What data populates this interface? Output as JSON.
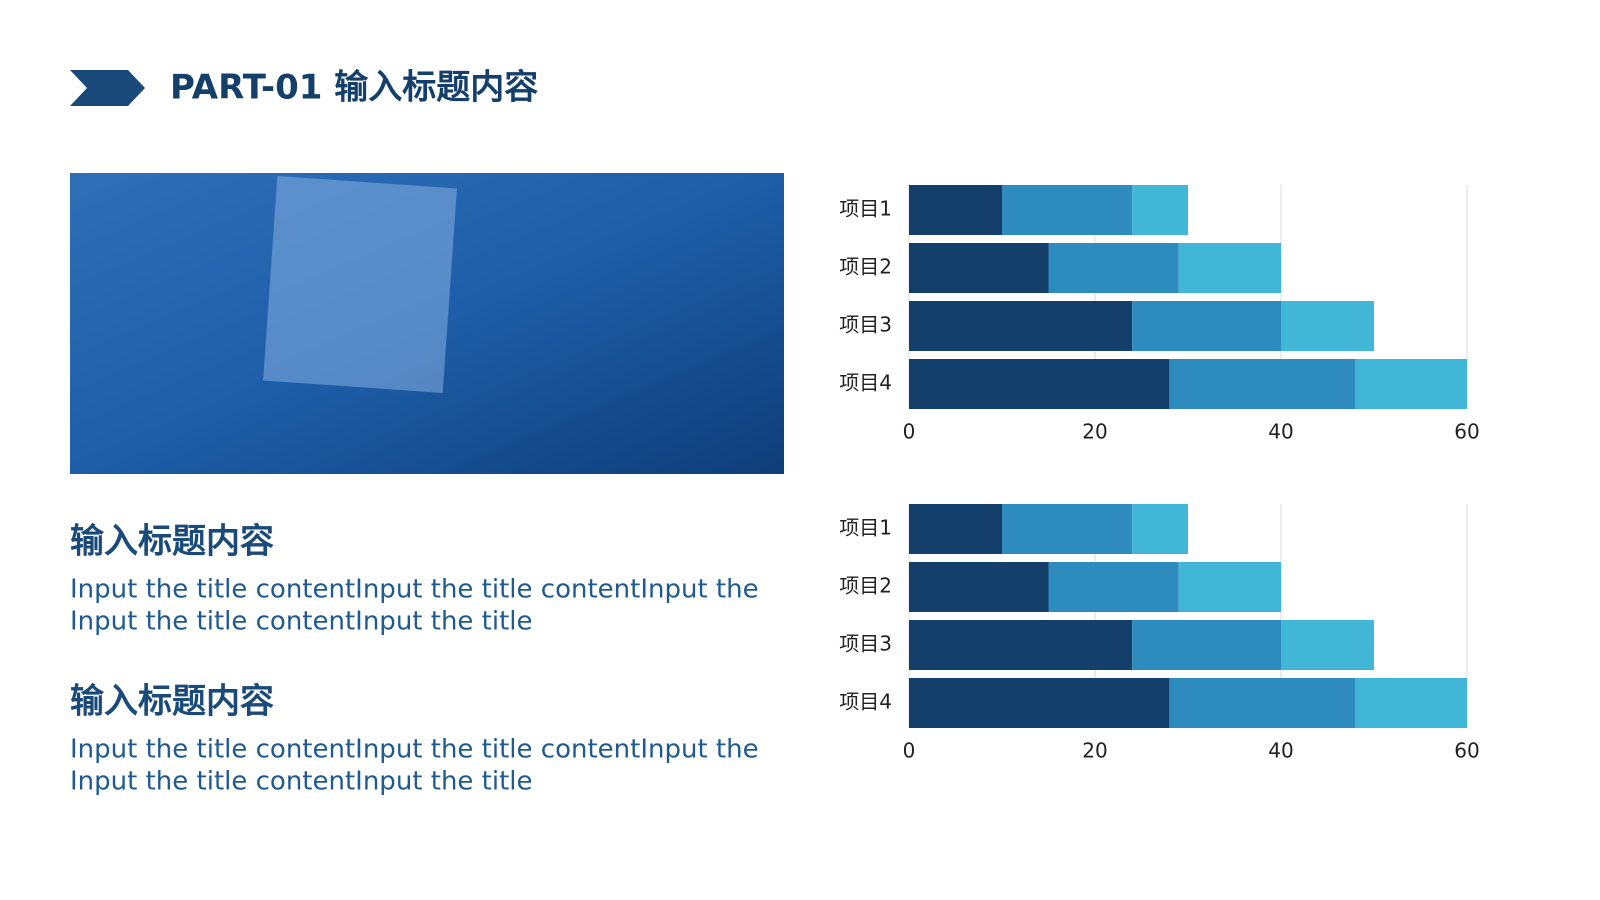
{
  "header": {
    "title": "PART-01 输入标题内容"
  },
  "sections": [
    {
      "title": "输入标题内容",
      "body": [
        "Input the title contentInput the title contentInput the",
        "Input the title contentInput the title"
      ]
    },
    {
      "title": "输入标题内容",
      "body": [
        "Input the title contentInput the title contentInput the",
        "Input the title contentInput the title"
      ]
    }
  ],
  "chart_data": [
    {
      "type": "stacked-bar-horizontal",
      "categories": [
        "项目1",
        "项目2",
        "项目3",
        "项目4"
      ],
      "series": [
        {
          "color": "#143f6b",
          "values": [
            10,
            15,
            24,
            28
          ]
        },
        {
          "color": "#2e8bbd",
          "values": [
            14,
            14,
            16,
            20
          ]
        },
        {
          "color": "#41b6d6",
          "values": [
            6,
            11,
            10,
            12
          ]
        }
      ],
      "xlim": [
        0,
        60
      ],
      "xticks": [
        0,
        20,
        40,
        60
      ],
      "grid": true
    },
    {
      "type": "stacked-bar-horizontal",
      "categories": [
        "项目1",
        "项目2",
        "项目3",
        "项目4"
      ],
      "series": [
        {
          "color": "#143f6b",
          "values": [
            10,
            15,
            24,
            28
          ]
        },
        {
          "color": "#2e8bbd",
          "values": [
            14,
            14,
            16,
            20
          ]
        },
        {
          "color": "#41b6d6",
          "values": [
            6,
            11,
            10,
            12
          ]
        }
      ],
      "xlim": [
        0,
        60
      ],
      "xticks": [
        0,
        20,
        40,
        60
      ],
      "grid": true
    }
  ]
}
